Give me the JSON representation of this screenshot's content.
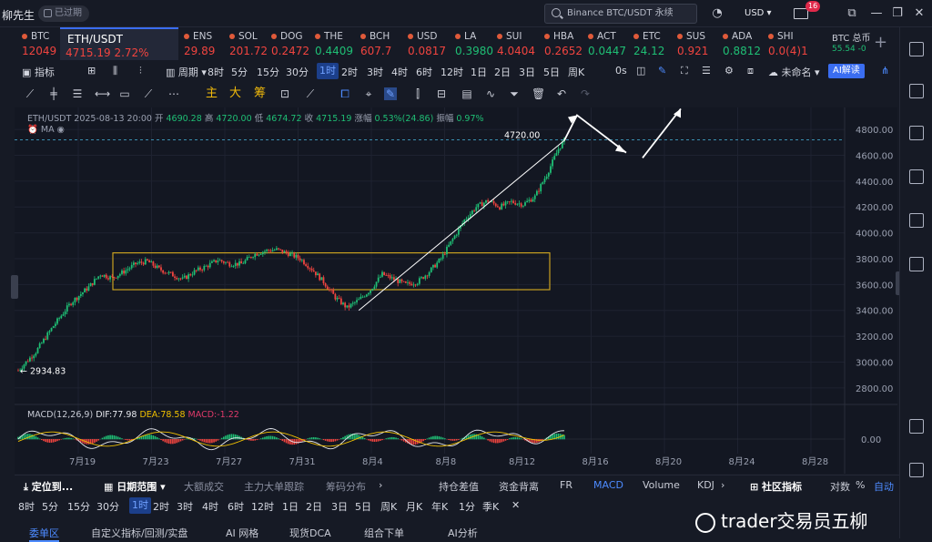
{
  "topbar": {
    "user": "柳先生",
    "expired_label": "已过期",
    "search_text": "Binance BTC/USDT 永续",
    "currency": "USD",
    "notification_count": "16"
  },
  "tickers": [
    {
      "sym": "BTC",
      "price": "12049",
      "dir": "dn"
    },
    {
      "sym": "ETH/USDT",
      "price": "4715.19",
      "change": "2.72%",
      "dir": "dn",
      "active": true
    },
    {
      "sym": "ENS",
      "price": "29.89",
      "dir": "dn"
    },
    {
      "sym": "SOL",
      "price": "201.72",
      "dir": "dn"
    },
    {
      "sym": "DOG",
      "price": "0.2472",
      "dir": "dn"
    },
    {
      "sym": "THE",
      "price": "0.4409",
      "dir": "up"
    },
    {
      "sym": "BCH",
      "price": "607.7",
      "dir": "dn"
    },
    {
      "sym": "USD",
      "price": "0.0817",
      "dir": "dn"
    },
    {
      "sym": "LA",
      "price": "0.3980",
      "dir": "up"
    },
    {
      "sym": "SUI",
      "price": "4.0404",
      "dir": "dn"
    },
    {
      "sym": "HBA",
      "price": "0.2652",
      "dir": "dn"
    },
    {
      "sym": "ACT",
      "price": "0.0447",
      "dir": "up"
    },
    {
      "sym": "ETC",
      "price": "24.12",
      "dir": "up"
    },
    {
      "sym": "SUS",
      "price": "0.921",
      "dir": "dn"
    },
    {
      "sym": "ADA",
      "price": "0.8812",
      "dir": "up"
    },
    {
      "sym": "SHI",
      "price": "0.0(4)1",
      "dir": "dn"
    }
  ],
  "ticker_right": {
    "label": "BTC 总币",
    "value": "55.54 -0"
  },
  "toolbar": {
    "indicator": "指标",
    "period": "周期",
    "timeframes": [
      "8时",
      "5分",
      "15分",
      "30分",
      "1时",
      "2时",
      "3时",
      "4时",
      "6时",
      "12时",
      "1日",
      "2日",
      "3日",
      "5日",
      "周K"
    ],
    "selected_timeframe": "1时",
    "zero_s": "0s",
    "unnamed": "未命名",
    "ai_label": "AI解读"
  },
  "drawing_tools": {
    "zhu": "主",
    "da": "大",
    "chou": "筹"
  },
  "chart_info": {
    "pair": "ETH/USDT",
    "time": "2025-08-13 20:00",
    "open_label": "开",
    "open": "4690.28",
    "high_label": "高",
    "high": "4720.00",
    "low_label": "低",
    "low": "4674.72",
    "close_label": "收",
    "close": "4715.19",
    "change_label": "涨幅",
    "change": "0.53%(24.86)",
    "amp_label": "振幅",
    "amp": "0.97%",
    "ma_label": "MA"
  },
  "macd": {
    "label": "MACD(12,26,9)",
    "dif": "DIF:77.98",
    "dea": "DEA:78.58",
    "macd": "MACD:-1.22"
  },
  "chart_data": {
    "type": "candlestick",
    "y_ticks": [
      "4800.00",
      "4600.00",
      "4400.00",
      "4200.00",
      "4000.00",
      "3800.00",
      "3600.00",
      "3400.00",
      "3200.00",
      "3000.00",
      "2800.00"
    ],
    "macd_tick": "0.00",
    "x_ticks": [
      "7月19",
      "7月23",
      "7月27",
      "7月31",
      "8月4",
      "8月8",
      "8月12",
      "8月16",
      "8月20",
      "8月24",
      "8月28"
    ],
    "ylim": [
      2700,
      4970
    ],
    "last_price_label": "4720.00",
    "low_label": "2934.83",
    "range_box": {
      "low": 3560,
      "high": 3845
    },
    "path": [
      [
        0,
        2935
      ],
      [
        3,
        3080
      ],
      [
        6,
        3280
      ],
      [
        9,
        3460
      ],
      [
        12,
        3580
      ],
      [
        14,
        3680
      ],
      [
        16,
        3650
      ],
      [
        18,
        3700
      ],
      [
        20,
        3760
      ],
      [
        22,
        3780
      ],
      [
        24,
        3720
      ],
      [
        26,
        3680
      ],
      [
        28,
        3640
      ],
      [
        30,
        3700
      ],
      [
        32,
        3740
      ],
      [
        34,
        3790
      ],
      [
        36,
        3760
      ],
      [
        38,
        3760
      ],
      [
        40,
        3830
      ],
      [
        42,
        3860
      ],
      [
        44,
        3870
      ],
      [
        46,
        3840
      ],
      [
        48,
        3800
      ],
      [
        50,
        3720
      ],
      [
        52,
        3620
      ],
      [
        54,
        3500
      ],
      [
        56,
        3420
      ],
      [
        58,
        3480
      ],
      [
        60,
        3560
      ],
      [
        62,
        3680
      ],
      [
        64,
        3640
      ],
      [
        66,
        3600
      ],
      [
        68,
        3620
      ],
      [
        70,
        3700
      ],
      [
        72,
        3800
      ],
      [
        74,
        3950
      ],
      [
        76,
        4100
      ],
      [
        78,
        4200
      ],
      [
        80,
        4250
      ],
      [
        82,
        4200
      ],
      [
        84,
        4240
      ],
      [
        86,
        4220
      ],
      [
        88,
        4280
      ],
      [
        90,
        4450
      ],
      [
        92,
        4650
      ],
      [
        93,
        4715
      ]
    ]
  },
  "bottom_bar1": {
    "locate": "定位到...",
    "date_range": "日期范围",
    "items": [
      "大额成交",
      "主力大单跟踪",
      "筹码分布",
      "持仓差值",
      "资金背离",
      "FR",
      "MACD",
      "Volume",
      "KDJ"
    ],
    "community": "社区指标",
    "log": "对数",
    "pct": "%",
    "auto": "自动"
  },
  "bottom_bar2": [
    "8时",
    "5分",
    "15分",
    "30分",
    "1时",
    "2时",
    "3时",
    "4时",
    "6时",
    "12时",
    "1日",
    "2日",
    "3日",
    "5日",
    "周K",
    "月K",
    "年K",
    "1分",
    "季K"
  ],
  "bottom_tabs": [
    "委单区",
    "自定义指标/回测/实盘",
    "AI 网格",
    "现货DCA",
    "组合下单",
    "AI分析"
  ],
  "watermark": "trader交易员五柳"
}
